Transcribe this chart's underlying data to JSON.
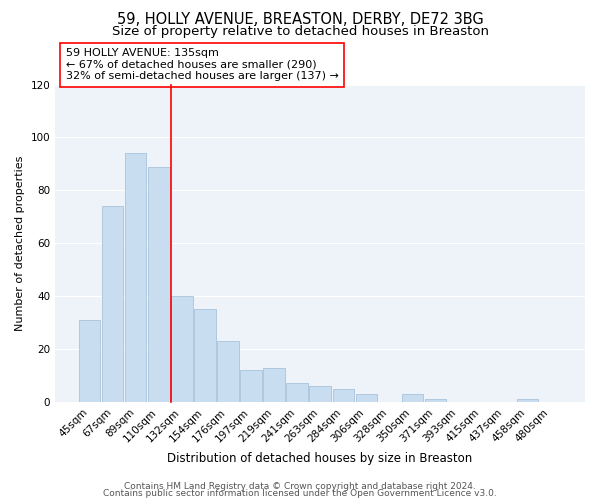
{
  "title": "59, HOLLY AVENUE, BREASTON, DERBY, DE72 3BG",
  "subtitle": "Size of property relative to detached houses in Breaston",
  "xlabel": "Distribution of detached houses by size in Breaston",
  "ylabel": "Number of detached properties",
  "bar_labels": [
    "45sqm",
    "67sqm",
    "89sqm",
    "110sqm",
    "132sqm",
    "154sqm",
    "176sqm",
    "197sqm",
    "219sqm",
    "241sqm",
    "263sqm",
    "284sqm",
    "306sqm",
    "328sqm",
    "350sqm",
    "371sqm",
    "393sqm",
    "415sqm",
    "437sqm",
    "458sqm",
    "480sqm"
  ],
  "bar_values": [
    31,
    74,
    94,
    89,
    40,
    35,
    23,
    12,
    13,
    7,
    6,
    5,
    3,
    0,
    3,
    1,
    0,
    0,
    0,
    1,
    0
  ],
  "bar_color": "#c9ddf0",
  "bar_edge_color": "#a8c4da",
  "property_line_index": 4,
  "property_line_color": "red",
  "annotation_line1": "59 HOLLY AVENUE: 135sqm",
  "annotation_line2": "← 67% of detached houses are smaller (290)",
  "annotation_line3": "32% of semi-detached houses are larger (137) →",
  "ylim": [
    0,
    120
  ],
  "yticks": [
    0,
    20,
    40,
    60,
    80,
    100,
    120
  ],
  "footnote1": "Contains HM Land Registry data © Crown copyright and database right 2024.",
  "footnote2": "Contains public sector information licensed under the Open Government Licence v3.0.",
  "background_color": "#eef3f9",
  "grid_color": "white",
  "title_fontsize": 10.5,
  "subtitle_fontsize": 9.5,
  "xlabel_fontsize": 8.5,
  "ylabel_fontsize": 8,
  "tick_fontsize": 7.5,
  "annotation_fontsize": 8,
  "footnote_fontsize": 6.5
}
